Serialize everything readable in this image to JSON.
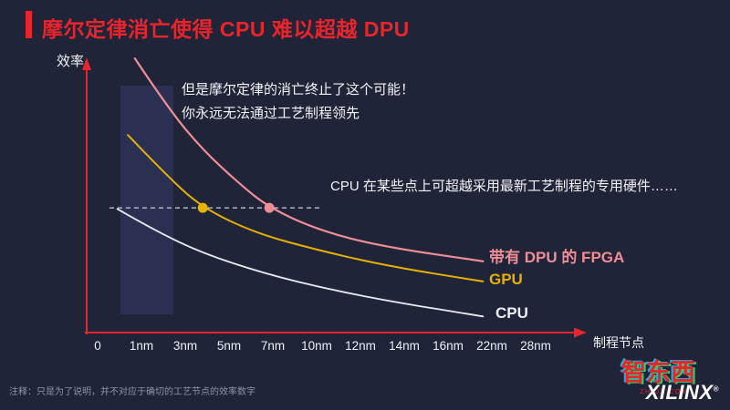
{
  "title": "摩尔定律消亡使得 CPU 难以超越 DPU",
  "annotations": {
    "line1": "但是摩尔定律的消亡终止了这个可能！",
    "line2": "你永远无法通过工艺制程领先",
    "cpu_note": "CPU 在某些点上可超越采用最新工艺制程的专用硬件……"
  },
  "footnote": "注释：只是为了说明，并不对应于确切的工艺节点的效率数字",
  "branding": {
    "xilinx": "XILINX",
    "registered": "®",
    "watermark": "智东西",
    "watermark_sub": "ZHIDX.COM"
  },
  "colors": {
    "background": "#1f2438",
    "accent_red": "#e8242c",
    "band": "#2b3052",
    "fpga_pink": "#ef8e96",
    "gpu_yellow": "#e5b000",
    "cpu_white": "#e9ebf0",
    "dashed_line": "#ccd0dd"
  },
  "chart_data": {
    "type": "line",
    "title": "",
    "xlabel": "制程节点",
    "ylabel": "效率",
    "x_tick_labels": [
      "0",
      "1nm",
      "3nm",
      "5nm",
      "7nm",
      "10nm",
      "12nm",
      "14nm",
      "16nm",
      "22nm",
      "28nm"
    ],
    "ylim": [
      0,
      105
    ],
    "grid": false,
    "legend_position": "right-of-curve-ends",
    "highlight_band_ticks": [
      "1nm",
      "3nm"
    ],
    "series": [
      {
        "name": "带有 DPU 的 FPGA",
        "color": "#ef8e96",
        "width": 2.2,
        "points": [
          [
            0.85,
            102
          ],
          [
            1.63,
            83
          ],
          [
            2.4,
            68
          ],
          [
            3.19,
            56
          ],
          [
            3.92,
            46.4
          ],
          [
            5.06,
            38
          ],
          [
            6.5,
            32
          ],
          [
            8.8,
            26.5
          ]
        ]
      },
      {
        "name": "GPU",
        "color": "#e5b000",
        "width": 2,
        "points": [
          [
            0.69,
            73.5
          ],
          [
            1.63,
            57.5
          ],
          [
            2.4,
            46.4
          ],
          [
            3.6,
            37
          ],
          [
            5.06,
            30.5
          ],
          [
            6.7,
            24.5
          ],
          [
            8.8,
            19
          ]
        ]
      },
      {
        "name": "CPU",
        "color": "#e9ebf0",
        "width": 1.8,
        "points": [
          [
            0.45,
            46
          ],
          [
            1.3,
            38
          ],
          [
            2.4,
            29.5
          ],
          [
            3.8,
            22
          ],
          [
            5.3,
            16
          ],
          [
            6.9,
            11
          ],
          [
            8.8,
            6
          ]
        ]
      }
    ],
    "markers": [
      {
        "x": 2.4,
        "y": 46.4,
        "color": "#e6b400",
        "on_series": "GPU"
      },
      {
        "x": 3.92,
        "y": 46.4,
        "color": "#ef8e96",
        "on_series": "带有 DPU 的 FPGA"
      }
    ],
    "threshold_line": {
      "x1": 0.27,
      "x2": 5.06,
      "y": 46.4
    }
  }
}
